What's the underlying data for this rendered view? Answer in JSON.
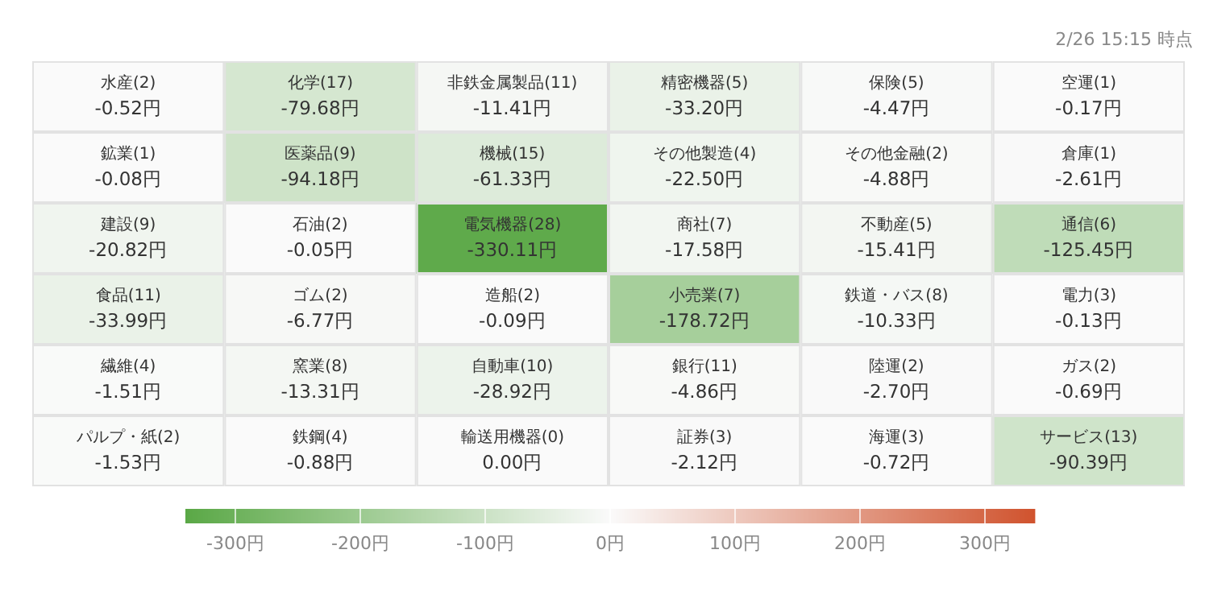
{
  "chart_data": {
    "type": "heatmap",
    "categories": [
      null,
      null,
      null,
      null,
      null,
      null
    ],
    "y_categories": [
      null,
      null,
      null,
      null,
      null,
      null
    ],
    "cells": [
      [
        -0.52,
        -79.68,
        -11.41,
        -33.2,
        -4.47,
        -0.17
      ],
      [
        -0.08,
        -94.18,
        -61.33,
        -22.5,
        -4.88,
        -2.61
      ],
      [
        -20.82,
        -0.05,
        -330.11,
        -17.58,
        -15.41,
        -125.45
      ],
      [
        -33.99,
        -6.77,
        -0.09,
        -178.72,
        -10.33,
        -0.13
      ],
      [
        -1.51,
        -13.31,
        -28.92,
        -4.86,
        -2.7,
        -0.69
      ],
      [
        -1.53,
        -0.88,
        0.0,
        -2.12,
        -0.72,
        -90.39
      ]
    ],
    "cell_labels": [
      [
        "水産(2)\n-0.52円",
        "化学(17)\n-79.68円",
        "非鉄金属製品(11)\n-11.41円",
        "精密機器(5)\n-33.20円",
        "保険(5)\n-4.47円",
        "空運(1)\n-0.17円"
      ],
      [
        "鉱業(1)\n-0.08円",
        "医薬品(9)\n-94.18円",
        "機械(15)\n-61.33円",
        "その他製造(4)\n-22.50円",
        "その他金融(2)\n-4.88円",
        "倉庫(1)\n-2.61円"
      ],
      [
        "建設(9)\n-20.82円",
        "石油(2)\n-0.05円",
        "電気機器(28)\n-330.11円",
        "商社(7)\n-17.58円",
        "不動産(5)\n-15.41円",
        "通信(6)\n-125.45円"
      ],
      [
        "食品(11)\n-33.99円",
        "ゴム(2)\n-6.77円",
        "造船(2)\n-0.09円",
        "小売業(7)\n-178.72円",
        "鉄道・バス(8)\n-10.33円",
        "電力(3)\n-0.13円"
      ],
      [
        "繊維(4)\n-1.51円",
        "窯業(8)\n-13.31円",
        "自動車(10)\n-28.92円",
        "銀行(11)\n-4.86円",
        "陸運(2)\n-2.70円",
        "ガス(2)\n-0.69円"
      ],
      [
        "パルプ・紙(2)\n-1.53円",
        "鉄鋼(4)\n-0.88円",
        "輸送用機器(0)\n0.00円",
        "証券(3)\n-2.12円",
        "海運(3)\n-0.72円",
        "サービス(13)\n-90.39円"
      ]
    ],
    "clim": [
      -340,
      340
    ],
    "cticks": [
      {
        "value": -300,
        "label": "-300円"
      },
      {
        "value": -200,
        "label": "-200円"
      },
      {
        "value": -100,
        "label": "-100円"
      },
      {
        "value": 0,
        "label": "0円"
      },
      {
        "value": 100,
        "label": "100円"
      },
      {
        "value": 200,
        "label": "200円"
      },
      {
        "value": 300,
        "label": "300円"
      }
    ],
    "annotations": [
      "2/26 15:15 時点"
    ]
  }
}
